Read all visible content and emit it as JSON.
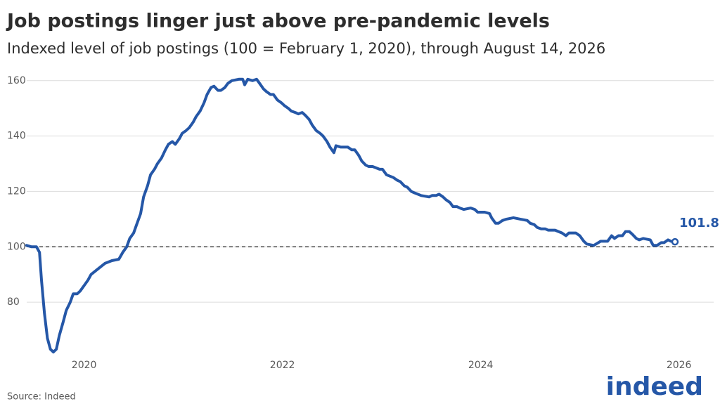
{
  "chart_data": {
    "type": "line",
    "title": "Job postings linger just above pre-pandemic levels",
    "subtitle": "Indexed level of job postings (100 = February 1, 2020), through August 14, 2026",
    "source": "Source: Indeed",
    "logo": "indeed",
    "xlim": [
      2019.4,
      2026.35
    ],
    "xticks": [
      2020,
      2022,
      2024,
      2026
    ],
    "ylim": [
      61,
      164
    ],
    "yticks": [
      80,
      100,
      120,
      140,
      160
    ],
    "grid": true,
    "reference_line": 100,
    "x": [
      2019.42,
      2019.47,
      2019.52,
      2019.55,
      2019.57,
      2019.6,
      2019.63,
      2019.66,
      2019.69,
      2019.72,
      2019.75,
      2019.79,
      2019.82,
      2019.86,
      2019.89,
      2019.93,
      2019.96,
      2020.0,
      2020.04,
      2020.07,
      2020.14,
      2020.21,
      2020.28,
      2020.35,
      2020.39,
      2020.43,
      2020.46,
      2020.5,
      2020.53,
      2020.57,
      2020.6,
      2020.64,
      2020.67,
      2020.71,
      2020.74,
      2020.78,
      2020.82,
      2020.85,
      2020.89,
      2020.92,
      2020.96,
      2020.99,
      2021.03,
      2021.06,
      2021.1,
      2021.13,
      2021.17,
      2021.21,
      2021.24,
      2021.28,
      2021.31,
      2021.35,
      2021.38,
      2021.42,
      2021.45,
      2021.49,
      2021.56,
      2021.6,
      2021.62,
      2021.65,
      2021.7,
      2021.74,
      2021.77,
      2021.81,
      2021.84,
      2021.88,
      2021.91,
      2021.95,
      2021.99,
      2022.02,
      2022.06,
      2022.09,
      2022.13,
      2022.16,
      2022.2,
      2022.23,
      2022.27,
      2022.3,
      2022.34,
      2022.38,
      2022.41,
      2022.45,
      2022.48,
      2022.52,
      2022.54,
      2022.59,
      2022.66,
      2022.7,
      2022.73,
      2022.77,
      2022.8,
      2022.84,
      2022.87,
      2022.91,
      2022.98,
      2023.01,
      2023.05,
      2023.12,
      2023.16,
      2023.19,
      2023.23,
      2023.26,
      2023.3,
      2023.33,
      2023.4,
      2023.48,
      2023.51,
      2023.55,
      2023.58,
      2023.62,
      2023.65,
      2023.69,
      2023.72,
      2023.76,
      2023.79,
      2023.83,
      2023.9,
      2023.94,
      2023.97,
      2024.04,
      2024.09,
      2024.11,
      2024.15,
      2024.18,
      2024.22,
      2024.26,
      2024.33,
      2024.4,
      2024.47,
      2024.5,
      2024.54,
      2024.57,
      2024.61,
      2024.65,
      2024.68,
      2024.75,
      2024.82,
      2024.86,
      2024.89,
      2024.96,
      2025.0,
      2025.04,
      2025.07,
      2025.14,
      2025.21,
      2025.25,
      2025.28,
      2025.32,
      2025.35,
      2025.39,
      2025.43,
      2025.46,
      2025.5,
      2025.53,
      2025.57,
      2025.6,
      2025.64,
      2025.71,
      2025.74,
      2025.78,
      2025.82,
      2025.85,
      2025.89,
      2025.92,
      2025.96
    ],
    "series": [
      {
        "color": "#2557a7",
        "values": [
          100.5,
          100,
          100,
          98,
          88,
          76,
          67,
          63,
          62,
          63,
          68,
          73,
          77,
          80,
          83,
          83,
          84,
          86,
          88,
          90,
          92,
          94,
          95,
          95.5,
          98,
          100,
          103,
          105,
          108,
          112,
          118,
          122,
          126,
          128,
          130,
          132,
          135,
          137,
          138,
          137,
          139,
          141,
          142,
          143,
          145,
          147,
          149,
          152,
          155,
          157.5,
          158,
          156.5,
          156.5,
          157.5,
          159,
          160,
          160.5,
          160.5,
          158.5,
          160.5,
          160,
          160.5,
          159,
          157,
          156,
          155,
          155,
          153,
          152,
          151,
          150,
          149,
          148.5,
          148,
          148.5,
          147.5,
          146,
          144,
          142,
          141,
          140,
          138,
          136,
          134,
          136.5,
          136,
          136,
          135,
          135,
          133,
          131,
          129.5,
          129,
          129,
          128,
          128,
          126,
          125,
          124,
          123.5,
          122,
          121.5,
          120,
          119.5,
          118.5,
          118,
          118.5,
          118.5,
          119,
          118,
          117,
          116,
          114.5,
          114.5,
          114,
          113.5,
          114,
          113.5,
          112.5,
          112.5,
          112,
          110.5,
          108.5,
          108.5,
          109.5,
          110,
          110.5,
          110,
          109.5,
          108.5,
          108,
          107,
          106.5,
          106.5,
          106,
          106,
          105,
          104,
          105,
          105,
          104,
          102,
          101,
          100.5,
          102,
          102,
          102,
          104,
          103,
          104,
          104,
          105.5,
          105.5,
          104.5,
          103,
          102.5,
          103,
          102.5,
          100.5,
          100.5,
          101.5,
          101.5,
          102.5,
          102,
          101.8
        ]
      }
    ]
  }
}
